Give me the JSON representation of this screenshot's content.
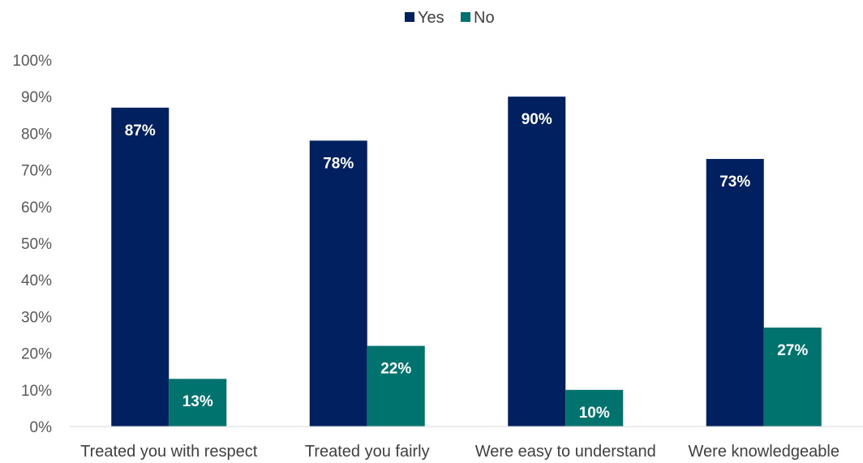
{
  "chart_data": {
    "type": "bar",
    "title": "",
    "xlabel": "",
    "ylabel": "",
    "categories": [
      "Treated you with respect",
      "Treated you fairly",
      "Were easy to understand",
      "Were knowledgeable"
    ],
    "series": [
      {
        "name": "Yes",
        "values": [
          87,
          78,
          90,
          73
        ],
        "labels": [
          "87%",
          "78%",
          "90%",
          "73%"
        ],
        "color": "#002060"
      },
      {
        "name": "No",
        "values": [
          13,
          22,
          10,
          27
        ],
        "labels": [
          "13%",
          "22%",
          "10%",
          "27%"
        ],
        "color": "#00736E"
      }
    ],
    "ylim": [
      0,
      100
    ],
    "y_ticks": [
      "0%",
      "10%",
      "20%",
      "30%",
      "40%",
      "50%",
      "60%",
      "70%",
      "80%",
      "90%",
      "100%"
    ],
    "grid": false,
    "legend_position": "top"
  }
}
